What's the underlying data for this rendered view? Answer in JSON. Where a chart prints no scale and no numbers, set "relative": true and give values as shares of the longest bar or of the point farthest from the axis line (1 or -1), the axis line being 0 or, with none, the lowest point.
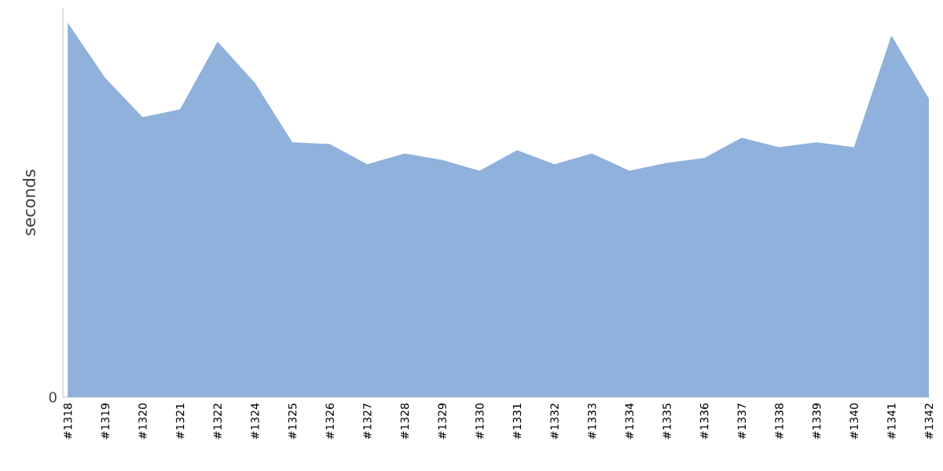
{
  "chart_data": {
    "type": "area",
    "ylabel": "seconds",
    "relative": true,
    "color": "#8fb1db",
    "categories": [
      "#1318",
      "#1319",
      "#1320",
      "#1321",
      "#1322",
      "#1324",
      "#1325",
      "#1326",
      "#1327",
      "#1328",
      "#1329",
      "#1330",
      "#1331",
      "#1332",
      "#1333",
      "#1334",
      "#1335",
      "#1336",
      "#1337",
      "#1338",
      "#1339",
      "#1340",
      "#1341",
      "#1342"
    ],
    "values": [
      1.0,
      0.853,
      0.748,
      0.769,
      0.95,
      0.84,
      0.681,
      0.676,
      0.622,
      0.651,
      0.634,
      0.605,
      0.66,
      0.622,
      0.651,
      0.605,
      0.626,
      0.639,
      0.693,
      0.668,
      0.681,
      0.668,
      0.966,
      0.798
    ],
    "annotations": [
      "0"
    ]
  }
}
